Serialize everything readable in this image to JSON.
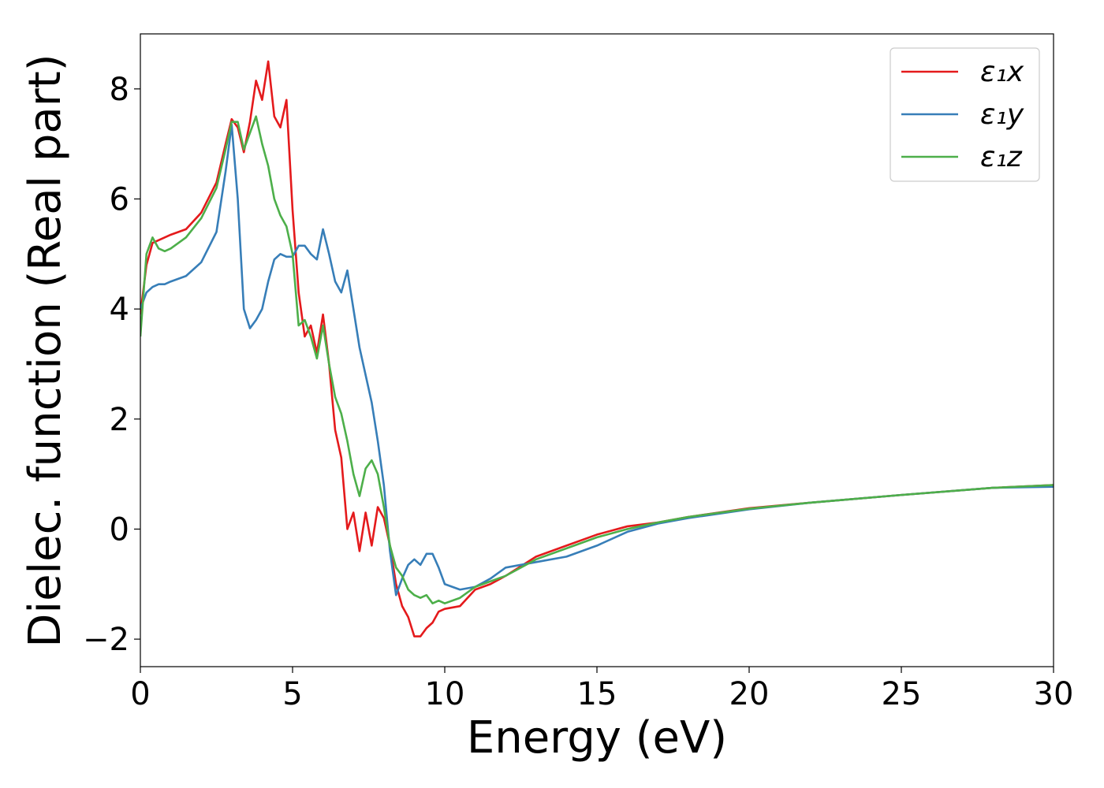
{
  "chart_data": {
    "type": "line",
    "xlabel": "Energy (eV)",
    "ylabel": "Dielec. function (Real part)",
    "xlim": [
      0,
      30
    ],
    "ylim": [
      -2.5,
      9.0
    ],
    "xticks": [
      0,
      5,
      10,
      15,
      20,
      25,
      30
    ],
    "yticks": [
      {
        "value": -2,
        "label": "−2"
      },
      0,
      2,
      4,
      6,
      8
    ],
    "grid": false,
    "legend": "upper right",
    "x": [
      0,
      0.2,
      0.4,
      0.6,
      0.8,
      1,
      1.5,
      2,
      2.5,
      2.8,
      3,
      3.2,
      3.4,
      3.6,
      3.8,
      4,
      4.2,
      4.4,
      4.6,
      4.8,
      5,
      5.2,
      5.4,
      5.6,
      5.8,
      6,
      6.2,
      6.4,
      6.6,
      6.8,
      7,
      7.2,
      7.4,
      7.6,
      7.8,
      8,
      8.2,
      8.4,
      8.6,
      8.8,
      9,
      9.2,
      9.4,
      9.6,
      9.8,
      10,
      10.5,
      11,
      11.5,
      12,
      13,
      14,
      15,
      16,
      17,
      18,
      20,
      22,
      25,
      28,
      30
    ],
    "series": [
      {
        "name": "ε₁x",
        "color": "#e41a1c",
        "values": [
          3.9,
          4.8,
          5.2,
          5.25,
          5.3,
          5.35,
          5.45,
          5.75,
          6.3,
          7.0,
          7.45,
          7.3,
          6.85,
          7.4,
          8.15,
          7.8,
          8.5,
          7.5,
          7.3,
          7.8,
          5.8,
          4.3,
          3.5,
          3.7,
          3.2,
          3.9,
          3.0,
          1.8,
          1.3,
          0.0,
          0.3,
          -0.4,
          0.3,
          -0.3,
          0.4,
          0.2,
          -0.3,
          -1.0,
          -1.4,
          -1.6,
          -1.95,
          -1.95,
          -1.8,
          -1.7,
          -1.5,
          -1.45,
          -1.4,
          -1.1,
          -1.0,
          -0.85,
          -0.5,
          -0.3,
          -0.1,
          0.05,
          0.12,
          0.22,
          0.38,
          0.48,
          0.62,
          0.75,
          0.8
        ]
      },
      {
        "name": "ε₁y",
        "color": "#377eb8",
        "values": [
          4.0,
          4.3,
          4.4,
          4.45,
          4.45,
          4.5,
          4.6,
          4.85,
          5.4,
          6.5,
          7.35,
          6.0,
          4.0,
          3.65,
          3.8,
          4.0,
          4.5,
          4.9,
          5.0,
          4.95,
          4.95,
          5.15,
          5.15,
          5.0,
          4.9,
          5.45,
          5.0,
          4.5,
          4.3,
          4.7,
          4.0,
          3.3,
          2.8,
          2.3,
          1.6,
          0.8,
          -0.4,
          -1.2,
          -0.9,
          -0.65,
          -0.55,
          -0.65,
          -0.45,
          -0.45,
          -0.7,
          -1.0,
          -1.1,
          -1.05,
          -0.9,
          -0.7,
          -0.6,
          -0.5,
          -0.3,
          -0.05,
          0.1,
          0.2,
          0.36,
          0.48,
          0.62,
          0.75,
          0.77
        ]
      },
      {
        "name": "ε₁z",
        "color": "#4daf4a",
        "values": [
          3.5,
          5.0,
          5.3,
          5.1,
          5.05,
          5.1,
          5.3,
          5.65,
          6.2,
          6.9,
          7.4,
          7.4,
          6.9,
          7.2,
          7.5,
          7.0,
          6.6,
          6.0,
          5.7,
          5.5,
          5.0,
          3.7,
          3.8,
          3.5,
          3.1,
          3.7,
          3.0,
          2.4,
          2.1,
          1.6,
          1.0,
          0.6,
          1.1,
          1.25,
          1.0,
          0.4,
          -0.3,
          -0.7,
          -0.85,
          -1.1,
          -1.2,
          -1.25,
          -1.2,
          -1.35,
          -1.3,
          -1.35,
          -1.25,
          -1.05,
          -0.95,
          -0.85,
          -0.55,
          -0.35,
          -0.15,
          0.0,
          0.12,
          0.22,
          0.37,
          0.48,
          0.62,
          0.75,
          0.8
        ]
      }
    ]
  }
}
